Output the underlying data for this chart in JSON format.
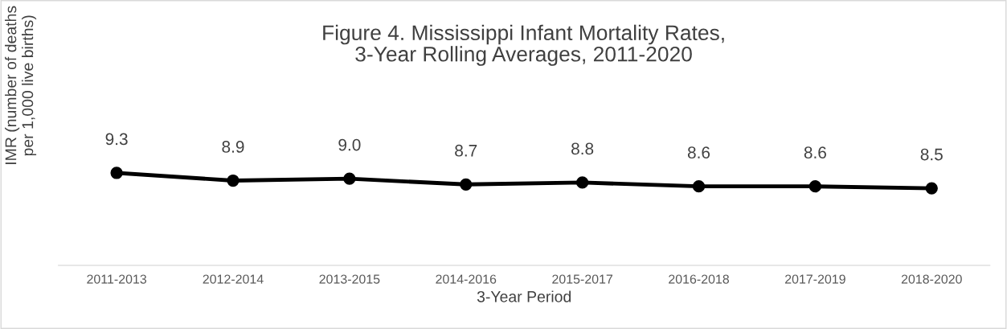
{
  "chart_data": {
    "type": "line",
    "title": "Figure 4. Mississippi Infant Mortality Rates,\n3-Year Rolling Averages, 2011-2020",
    "xlabel": "3-Year Period",
    "ylabel": "IMR (number of deaths\nper 1,000 live births)",
    "categories": [
      "2011-2013",
      "2012-2014",
      "2013-2015",
      "2014-2016",
      "2015-2017",
      "2016-2018",
      "2017-2019",
      "2018-2020"
    ],
    "series": [
      {
        "color": "#000000",
        "values": [
          9.3,
          8.9,
          9.0,
          8.7,
          8.8,
          8.6,
          8.6,
          8.5
        ],
        "value_labels": [
          "9.3",
          "8.9",
          "9.0",
          "8.7",
          "8.8",
          "8.6",
          "8.6",
          "8.5"
        ]
      }
    ],
    "tick_labels": "x",
    "marker": "circle",
    "line_style": "solid",
    "grid": false,
    "legend": false
  }
}
